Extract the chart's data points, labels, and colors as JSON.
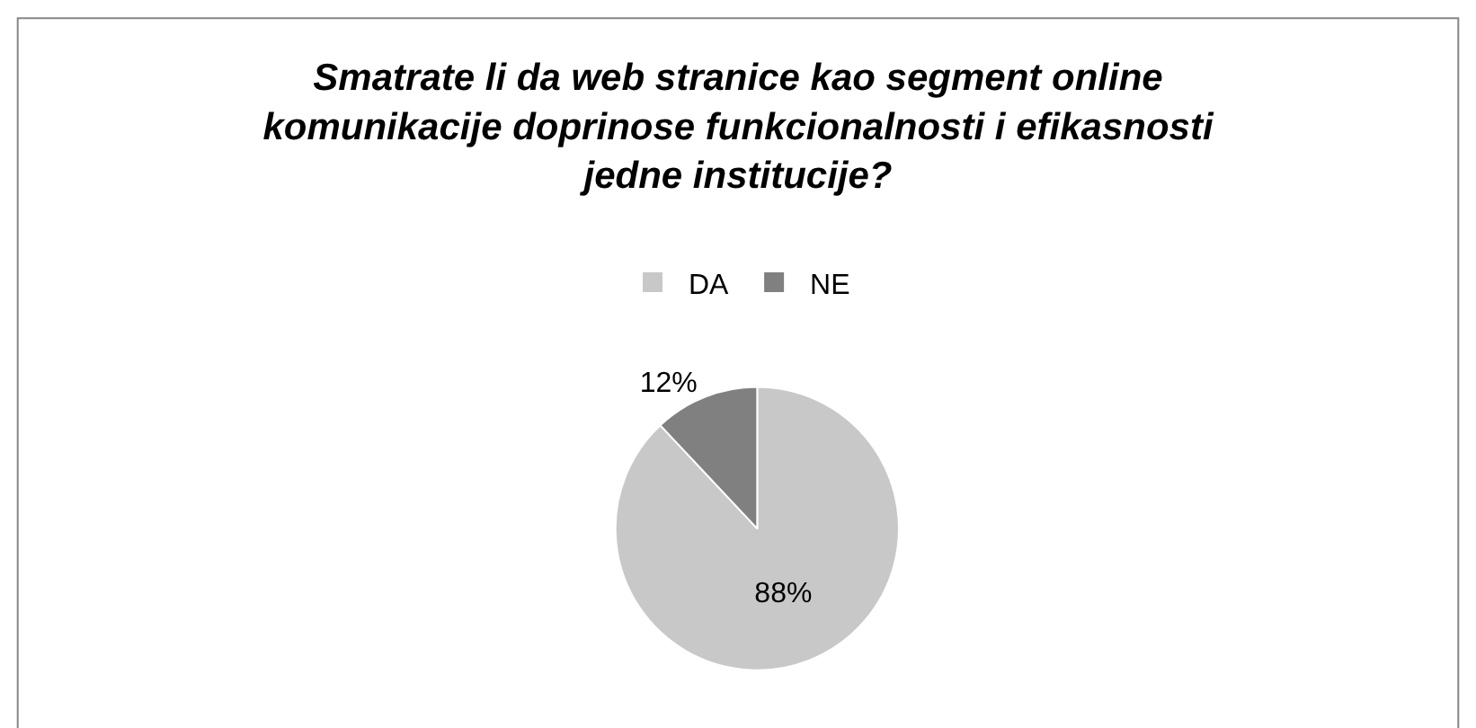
{
  "chart_data": {
    "type": "pie",
    "title": "Smatrate li da web stranice kao segment online komunikacije doprinose funkcionalnosti i efikasnosti jedne institucije?",
    "categories": [
      "DA",
      "NE"
    ],
    "values": [
      88,
      12
    ],
    "colors": [
      "#c8c8c8",
      "#808080"
    ],
    "value_labels": [
      "88%",
      "12%"
    ],
    "legend": "top"
  }
}
